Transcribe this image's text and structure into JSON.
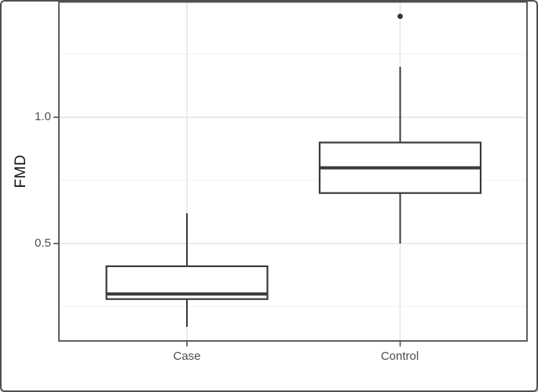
{
  "figure": {
    "background": "#ffffff",
    "frame_border_color": "#4f4f4f"
  },
  "chart_data": {
    "type": "boxplot",
    "title": "",
    "xlabel": "",
    "ylabel": "FMD",
    "legend": "none",
    "grid": "horizontal major+minor and vertical category gridlines, light gray on white",
    "categories": [
      "Case",
      "Control"
    ],
    "boxes": [
      {
        "category": "Case",
        "whisker_low": 0.17,
        "q1": 0.28,
        "median": 0.3,
        "q3": 0.41,
        "whisker_high": 0.62,
        "outliers": []
      },
      {
        "category": "Control",
        "whisker_low": 0.5,
        "q1": 0.7,
        "median": 0.8,
        "q3": 0.9,
        "whisker_high": 1.2,
        "outliers": [
          1.4
        ]
      }
    ],
    "y_axis": {
      "ticks": [
        {
          "value": 1.0,
          "label": "1.0"
        },
        {
          "value": 0.5,
          "label": "0.5"
        }
      ],
      "major_gridlines": [
        0.5,
        1.0
      ],
      "minor_gridlines": [
        0.25,
        0.75,
        1.25
      ],
      "range_approx": [
        0.14,
        1.44
      ]
    },
    "colors": {
      "box_stroke": "#3a3a3a",
      "box_fill": "#ffffff",
      "median": "#3a3a3a",
      "outlier": "#333333",
      "grid_major": "#e8e8e8",
      "grid_minor": "#f2f2f2",
      "panel_border": "#4d4d4d",
      "axis_text": "#4d4d4d",
      "axis_title": "#141414"
    }
  }
}
